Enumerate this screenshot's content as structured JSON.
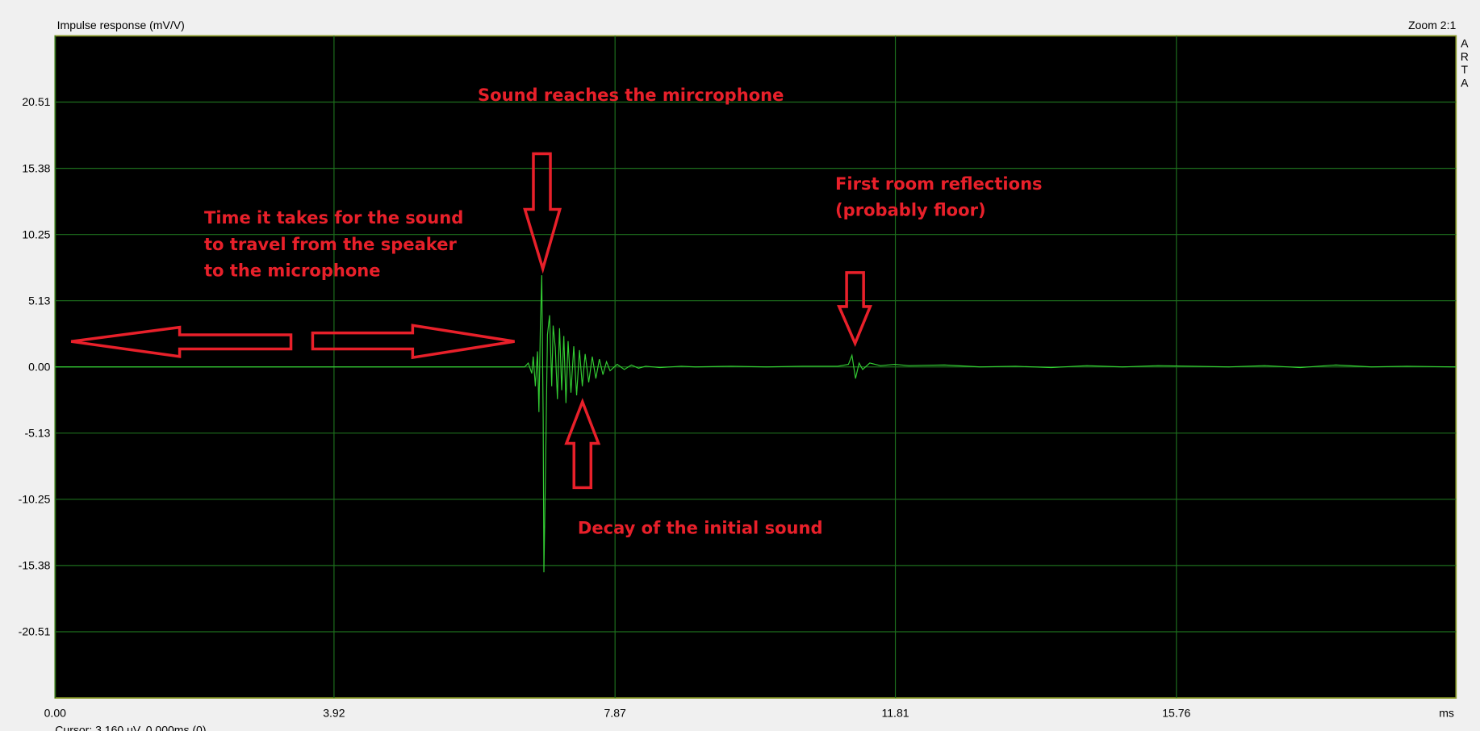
{
  "chart_data": {
    "type": "line",
    "title": "Impulse response (mV/V)",
    "zoom_label": "Zoom 2:1",
    "brand": [
      "A",
      "R",
      "T",
      "A"
    ],
    "x_unit": "ms",
    "cursor": "Cursor: 3.160 uV, 0.000ms (0)",
    "x": [
      0,
      6.6,
      6.65,
      6.7,
      6.72,
      6.75,
      6.78,
      6.8,
      6.82,
      6.84,
      6.86,
      6.87,
      6.89,
      6.92,
      6.95,
      6.98,
      7.0,
      7.03,
      7.06,
      7.09,
      7.12,
      7.15,
      7.18,
      7.21,
      7.25,
      7.29,
      7.33,
      7.37,
      7.41,
      7.45,
      7.5,
      7.55,
      7.6,
      7.65,
      7.7,
      7.75,
      7.8,
      7.9,
      8.0,
      8.1,
      8.2,
      8.3,
      8.5,
      8.8,
      9.0,
      9.5,
      10.0,
      10.5,
      11.0,
      11.15,
      11.2,
      11.25,
      11.3,
      11.35,
      11.45,
      11.6,
      11.8,
      12.0,
      12.5,
      13.0,
      13.5,
      14.0,
      14.5,
      15.0,
      15.5,
      16.0,
      16.5,
      17.0,
      17.5,
      18.0,
      18.5,
      19.0,
      19.69
    ],
    "values": [
      0,
      0,
      0.3,
      -0.5,
      0.8,
      -1.5,
      1.2,
      -3.5,
      3.0,
      7.1,
      -4.0,
      -15.9,
      -9.0,
      2.5,
      4.0,
      -1.5,
      3.2,
      1.5,
      -2.5,
      3.0,
      -1.8,
      2.4,
      -2.8,
      2.0,
      -2.0,
      1.6,
      -2.2,
      1.3,
      -1.5,
      1.0,
      -1.2,
      0.8,
      -0.9,
      0.6,
      -0.6,
      0.4,
      -0.3,
      0.2,
      -0.2,
      0.15,
      -0.1,
      0.05,
      -0.05,
      0.05,
      0,
      0.05,
      0,
      0.05,
      0.05,
      0.2,
      0.9,
      -0.9,
      0.3,
      -0.2,
      0.3,
      0.1,
      0.2,
      0.1,
      0.15,
      0,
      0.05,
      -0.05,
      0.1,
      0,
      0.1,
      0.05,
      0,
      0.1,
      -0.05,
      0.15,
      0,
      0.05,
      0
    ],
    "color": "#33cc33",
    "xlim": [
      0,
      19.69
    ],
    "ylim": [
      -25.64,
      25.64
    ],
    "xticks": [
      {
        "value": 0,
        "label": "0.00"
      },
      3.92,
      7.87,
      11.81,
      15.76
    ],
    "yticks": [
      20.51,
      15.38,
      10.25,
      5.13,
      {
        "value": 0,
        "label": "0.00"
      },
      -5.13,
      -10.25,
      -15.38,
      -20.51
    ],
    "grid": true,
    "annotations": {
      "arrival": "Sound reaches the mircrophone",
      "travel": [
        "Time it takes for the sound",
        "to travel from the speaker",
        "to the microphone"
      ],
      "reflections": [
        "First room reflections",
        "(probably floor)"
      ],
      "decay": "Decay of the initial sound"
    }
  }
}
